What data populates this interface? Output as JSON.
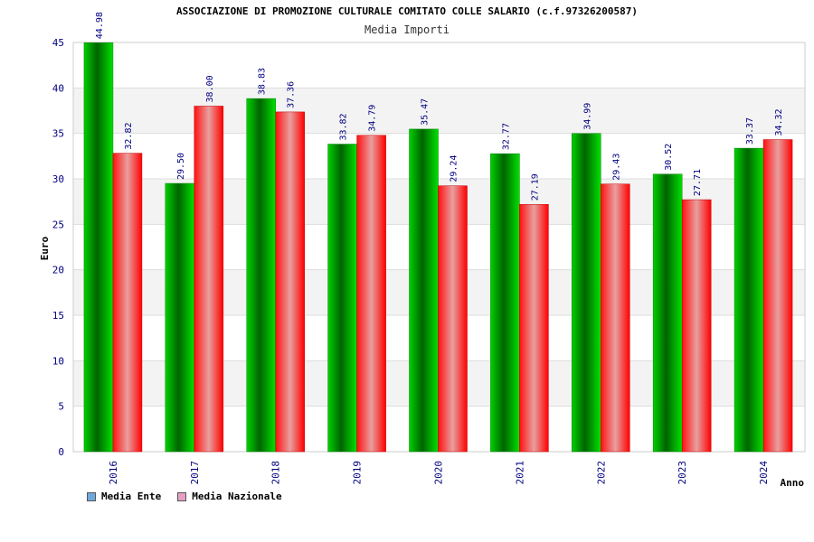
{
  "header": {
    "title": "ASSOCIAZIONE DI PROMOZIONE CULTURALE COMITATO COLLE SALARIO (c.f.97326200587)",
    "subtitle": "Media Importi"
  },
  "legend": {
    "items": [
      {
        "label": "Media Ente",
        "color": "#6fa8dc"
      },
      {
        "label": "Media Nazionale",
        "color": "#e6a0c4"
      }
    ]
  },
  "chart_data": {
    "type": "bar",
    "title": "Media Importi",
    "xlabel": "Anno",
    "ylabel": "Euro",
    "ylim": [
      0,
      45
    ],
    "yticks": [
      0,
      5,
      10,
      15,
      20,
      25,
      30,
      35,
      40,
      45
    ],
    "categories": [
      "2016",
      "2017",
      "2018",
      "2019",
      "2020",
      "2021",
      "2022",
      "2023",
      "2024"
    ],
    "series": [
      {
        "name": "Media Ente",
        "color": "#00c000",
        "values": [
          44.98,
          29.5,
          38.83,
          33.82,
          35.47,
          32.77,
          34.99,
          30.52,
          33.37
        ],
        "labels": [
          "44.98",
          "29.50",
          "38.83",
          "33.82",
          "35.47",
          "32.77",
          "34.99",
          "30.52",
          "33.37"
        ]
      },
      {
        "name": "Media Nazionale",
        "color": "#ff0000",
        "values": [
          32.82,
          38.0,
          37.36,
          34.79,
          29.24,
          27.19,
          29.43,
          27.71,
          34.32
        ],
        "labels": [
          "32.82",
          "38.00",
          "37.36",
          "34.79",
          "29.24",
          "27.19",
          "29.43",
          "27.71",
          "34.32"
        ]
      }
    ],
    "grid": true,
    "legend_position": "bottom-left"
  }
}
